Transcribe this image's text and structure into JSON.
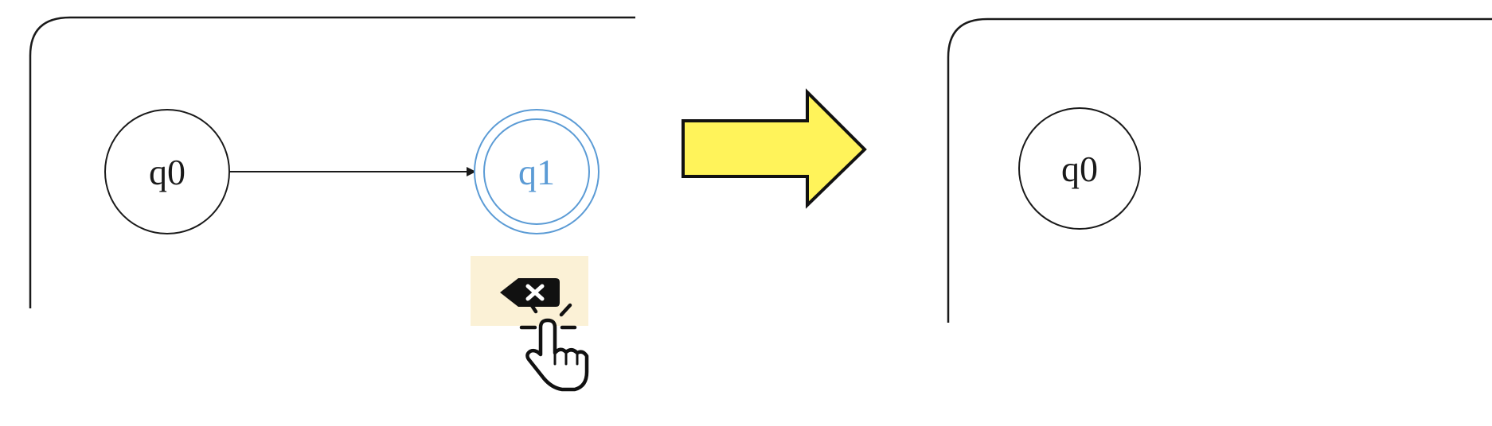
{
  "before": {
    "nodes": [
      {
        "id": "q0",
        "label": "q0",
        "accepting": false,
        "selected": false
      },
      {
        "id": "q1",
        "label": "q1",
        "accepting": true,
        "selected": true
      }
    ],
    "edges": [
      {
        "from": "q0",
        "to": "q1"
      }
    ]
  },
  "action": {
    "icon": "delete-backspace-icon",
    "cursor": "pointer-hand-click-icon"
  },
  "transition": {
    "icon": "right-arrow-icon"
  },
  "after": {
    "nodes": [
      {
        "id": "q0",
        "label": "q0",
        "accepting": false,
        "selected": false
      }
    ],
    "edges": []
  },
  "colors": {
    "stroke": "#1a1a1a",
    "selected": "#5b9bd5",
    "arrow_fill": "#fff35a",
    "delete_bg": "#fbf1d6"
  }
}
